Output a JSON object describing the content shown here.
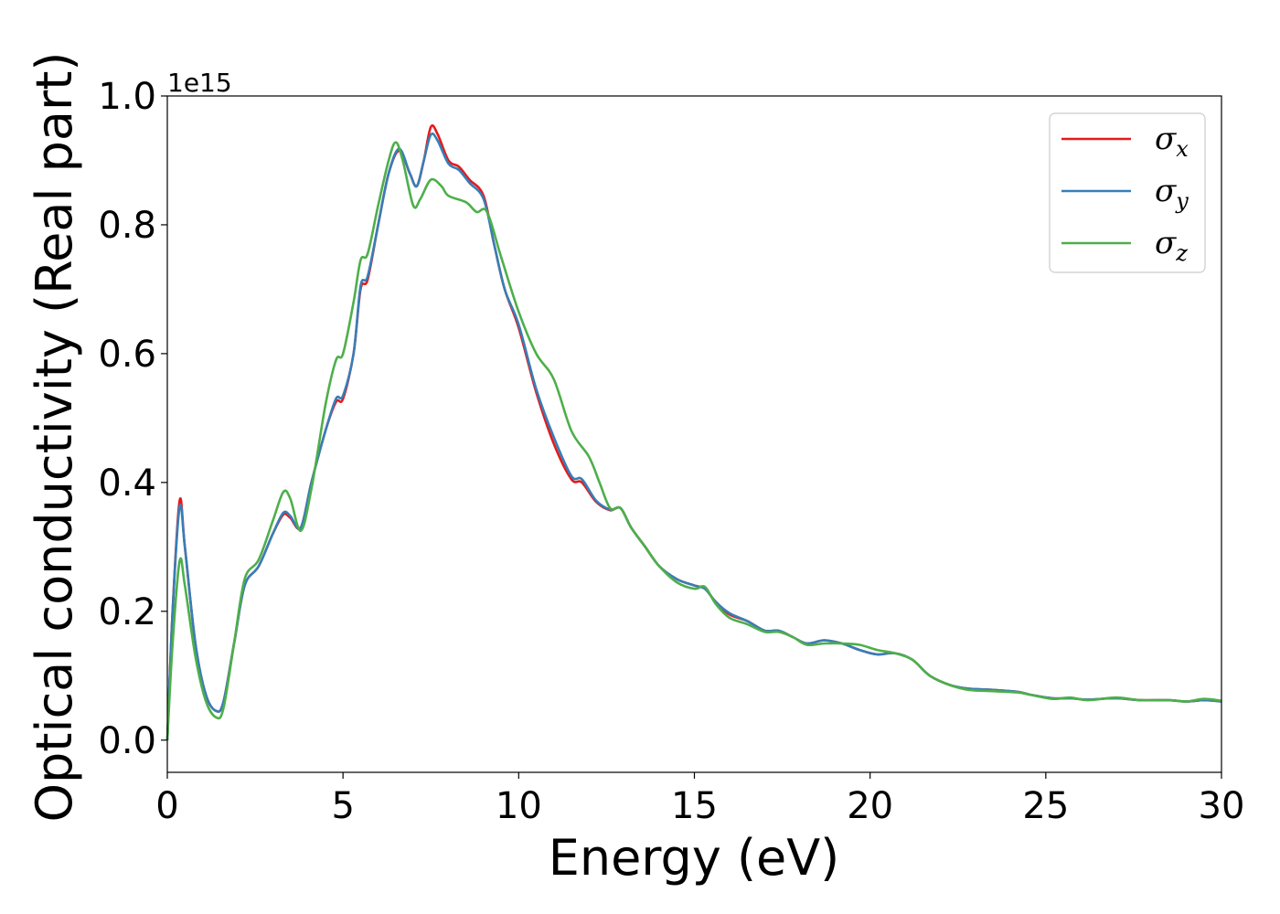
{
  "chart_data": {
    "type": "line",
    "title": "",
    "xlabel": "Energy (eV)",
    "ylabel": "Optical conductivity (Real part)",
    "y_offset_label": "1e15",
    "xlim": [
      0,
      30
    ],
    "ylim": [
      -0.05,
      1.0
    ],
    "x_ticks": [
      0,
      5,
      10,
      15,
      20,
      25,
      30
    ],
    "x_tick_labels": [
      "0",
      "5",
      "10",
      "15",
      "20",
      "25",
      "30"
    ],
    "y_ticks": [
      0.0,
      0.2,
      0.4,
      0.6,
      0.8,
      1.0
    ],
    "y_tick_labels": [
      "0.0",
      "0.2",
      "0.4",
      "0.6",
      "0.8",
      "1.0"
    ],
    "grid": false,
    "legend_position": "top-right",
    "series": [
      {
        "name": "σx",
        "legend_base": "σ",
        "legend_sub": "x",
        "color": "#e41a1c",
        "points": [
          [
            0,
            0.0
          ],
          [
            0.15,
            0.2
          ],
          [
            0.35,
            0.372
          ],
          [
            0.5,
            0.3
          ],
          [
            0.8,
            0.15
          ],
          [
            1.1,
            0.07
          ],
          [
            1.4,
            0.045
          ],
          [
            1.6,
            0.06
          ],
          [
            1.9,
            0.15
          ],
          [
            2.2,
            0.24
          ],
          [
            2.6,
            0.27
          ],
          [
            3.0,
            0.32
          ],
          [
            3.3,
            0.35
          ],
          [
            3.5,
            0.345
          ],
          [
            3.8,
            0.33
          ],
          [
            4.1,
            0.4
          ],
          [
            4.5,
            0.48
          ],
          [
            4.8,
            0.525
          ],
          [
            5.0,
            0.53
          ],
          [
            5.3,
            0.6
          ],
          [
            5.5,
            0.7
          ],
          [
            5.7,
            0.715
          ],
          [
            6.0,
            0.8
          ],
          [
            6.3,
            0.88
          ],
          [
            6.6,
            0.915
          ],
          [
            6.9,
            0.88
          ],
          [
            7.1,
            0.86
          ],
          [
            7.3,
            0.9
          ],
          [
            7.5,
            0.952
          ],
          [
            7.7,
            0.94
          ],
          [
            8.0,
            0.9
          ],
          [
            8.3,
            0.89
          ],
          [
            8.6,
            0.87
          ],
          [
            9.0,
            0.845
          ],
          [
            9.3,
            0.77
          ],
          [
            9.6,
            0.7
          ],
          [
            10.0,
            0.64
          ],
          [
            10.5,
            0.54
          ],
          [
            11.0,
            0.46
          ],
          [
            11.5,
            0.405
          ],
          [
            11.8,
            0.4
          ],
          [
            12.2,
            0.37
          ],
          [
            12.6,
            0.357
          ],
          [
            12.9,
            0.36
          ],
          [
            13.2,
            0.33
          ],
          [
            13.6,
            0.3
          ],
          [
            14.0,
            0.27
          ],
          [
            14.5,
            0.25
          ],
          [
            15.0,
            0.24
          ],
          [
            15.3,
            0.235
          ],
          [
            15.6,
            0.215
          ],
          [
            16.0,
            0.195
          ],
          [
            16.5,
            0.185
          ],
          [
            17.0,
            0.17
          ],
          [
            17.4,
            0.17
          ],
          [
            17.8,
            0.16
          ],
          [
            18.2,
            0.15
          ],
          [
            18.7,
            0.155
          ],
          [
            19.2,
            0.15
          ],
          [
            19.7,
            0.14
          ],
          [
            20.2,
            0.133
          ],
          [
            20.7,
            0.135
          ],
          [
            21.2,
            0.125
          ],
          [
            21.7,
            0.1
          ],
          [
            22.3,
            0.085
          ],
          [
            22.8,
            0.08
          ],
          [
            23.5,
            0.078
          ],
          [
            24.2,
            0.075
          ],
          [
            24.6,
            0.07
          ],
          [
            25.2,
            0.065
          ],
          [
            25.7,
            0.065
          ],
          [
            26.2,
            0.063
          ],
          [
            27.0,
            0.065
          ],
          [
            27.7,
            0.062
          ],
          [
            28.5,
            0.062
          ],
          [
            29.0,
            0.06
          ],
          [
            29.5,
            0.062
          ],
          [
            30.0,
            0.06
          ]
        ]
      },
      {
        "name": "σy",
        "legend_base": "σ",
        "legend_sub": "y",
        "color": "#377eb8",
        "points": [
          [
            0,
            0.0
          ],
          [
            0.15,
            0.2
          ],
          [
            0.35,
            0.362
          ],
          [
            0.5,
            0.3
          ],
          [
            0.8,
            0.15
          ],
          [
            1.1,
            0.07
          ],
          [
            1.4,
            0.045
          ],
          [
            1.6,
            0.06
          ],
          [
            1.9,
            0.15
          ],
          [
            2.2,
            0.24
          ],
          [
            2.6,
            0.27
          ],
          [
            3.0,
            0.32
          ],
          [
            3.3,
            0.353
          ],
          [
            3.5,
            0.348
          ],
          [
            3.8,
            0.33
          ],
          [
            4.1,
            0.4
          ],
          [
            4.5,
            0.48
          ],
          [
            4.8,
            0.53
          ],
          [
            5.0,
            0.535
          ],
          [
            5.3,
            0.6
          ],
          [
            5.5,
            0.705
          ],
          [
            5.7,
            0.72
          ],
          [
            6.0,
            0.8
          ],
          [
            6.3,
            0.88
          ],
          [
            6.6,
            0.918
          ],
          [
            6.9,
            0.88
          ],
          [
            7.1,
            0.86
          ],
          [
            7.3,
            0.9
          ],
          [
            7.5,
            0.94
          ],
          [
            7.7,
            0.93
          ],
          [
            8.0,
            0.895
          ],
          [
            8.3,
            0.885
          ],
          [
            8.6,
            0.865
          ],
          [
            9.0,
            0.84
          ],
          [
            9.3,
            0.77
          ],
          [
            9.6,
            0.7
          ],
          [
            10.0,
            0.645
          ],
          [
            10.5,
            0.545
          ],
          [
            11.0,
            0.47
          ],
          [
            11.5,
            0.41
          ],
          [
            11.8,
            0.405
          ],
          [
            12.2,
            0.372
          ],
          [
            12.6,
            0.358
          ],
          [
            12.9,
            0.36
          ],
          [
            13.2,
            0.33
          ],
          [
            13.6,
            0.3
          ],
          [
            14.0,
            0.27
          ],
          [
            14.5,
            0.25
          ],
          [
            15.0,
            0.24
          ],
          [
            15.3,
            0.235
          ],
          [
            15.6,
            0.215
          ],
          [
            16.0,
            0.197
          ],
          [
            16.5,
            0.185
          ],
          [
            17.0,
            0.17
          ],
          [
            17.4,
            0.17
          ],
          [
            17.8,
            0.16
          ],
          [
            18.2,
            0.15
          ],
          [
            18.7,
            0.155
          ],
          [
            19.2,
            0.15
          ],
          [
            19.7,
            0.14
          ],
          [
            20.2,
            0.133
          ],
          [
            20.7,
            0.135
          ],
          [
            21.2,
            0.125
          ],
          [
            21.7,
            0.1
          ],
          [
            22.3,
            0.085
          ],
          [
            22.8,
            0.08
          ],
          [
            23.5,
            0.078
          ],
          [
            24.2,
            0.075
          ],
          [
            24.6,
            0.07
          ],
          [
            25.2,
            0.065
          ],
          [
            25.7,
            0.065
          ],
          [
            26.2,
            0.063
          ],
          [
            27.0,
            0.065
          ],
          [
            27.7,
            0.062
          ],
          [
            28.5,
            0.062
          ],
          [
            29.0,
            0.06
          ],
          [
            29.5,
            0.062
          ],
          [
            30.0,
            0.06
          ]
        ]
      },
      {
        "name": "σz",
        "legend_base": "σ",
        "legend_sub": "z",
        "color": "#4daf4a",
        "points": [
          [
            0,
            0.0
          ],
          [
            0.15,
            0.15
          ],
          [
            0.35,
            0.278
          ],
          [
            0.5,
            0.24
          ],
          [
            0.8,
            0.13
          ],
          [
            1.1,
            0.06
          ],
          [
            1.4,
            0.035
          ],
          [
            1.6,
            0.05
          ],
          [
            1.9,
            0.15
          ],
          [
            2.2,
            0.25
          ],
          [
            2.6,
            0.28
          ],
          [
            3.0,
            0.34
          ],
          [
            3.3,
            0.385
          ],
          [
            3.5,
            0.375
          ],
          [
            3.8,
            0.325
          ],
          [
            4.1,
            0.39
          ],
          [
            4.5,
            0.52
          ],
          [
            4.8,
            0.59
          ],
          [
            5.0,
            0.6
          ],
          [
            5.3,
            0.68
          ],
          [
            5.5,
            0.745
          ],
          [
            5.7,
            0.755
          ],
          [
            6.0,
            0.83
          ],
          [
            6.3,
            0.9
          ],
          [
            6.5,
            0.928
          ],
          [
            6.7,
            0.9
          ],
          [
            7.0,
            0.83
          ],
          [
            7.2,
            0.84
          ],
          [
            7.5,
            0.87
          ],
          [
            7.8,
            0.86
          ],
          [
            8.0,
            0.845
          ],
          [
            8.5,
            0.835
          ],
          [
            8.8,
            0.82
          ],
          [
            9.1,
            0.82
          ],
          [
            9.5,
            0.75
          ],
          [
            10.0,
            0.665
          ],
          [
            10.5,
            0.6
          ],
          [
            11.0,
            0.56
          ],
          [
            11.5,
            0.48
          ],
          [
            12.0,
            0.44
          ],
          [
            12.3,
            0.4
          ],
          [
            12.6,
            0.36
          ],
          [
            12.9,
            0.36
          ],
          [
            13.2,
            0.33
          ],
          [
            13.6,
            0.3
          ],
          [
            14.0,
            0.27
          ],
          [
            14.5,
            0.245
          ],
          [
            15.0,
            0.235
          ],
          [
            15.3,
            0.238
          ],
          [
            15.6,
            0.212
          ],
          [
            16.0,
            0.19
          ],
          [
            16.5,
            0.18
          ],
          [
            17.0,
            0.168
          ],
          [
            17.4,
            0.168
          ],
          [
            17.8,
            0.16
          ],
          [
            18.2,
            0.148
          ],
          [
            18.7,
            0.15
          ],
          [
            19.2,
            0.15
          ],
          [
            19.7,
            0.148
          ],
          [
            20.2,
            0.14
          ],
          [
            20.7,
            0.135
          ],
          [
            21.2,
            0.125
          ],
          [
            21.7,
            0.1
          ],
          [
            22.3,
            0.085
          ],
          [
            22.8,
            0.078
          ],
          [
            23.5,
            0.076
          ],
          [
            24.2,
            0.074
          ],
          [
            24.6,
            0.07
          ],
          [
            25.2,
            0.064
          ],
          [
            25.7,
            0.066
          ],
          [
            26.2,
            0.062
          ],
          [
            27.0,
            0.066
          ],
          [
            27.7,
            0.062
          ],
          [
            28.5,
            0.062
          ],
          [
            29.0,
            0.06
          ],
          [
            29.5,
            0.064
          ],
          [
            30.0,
            0.061
          ]
        ]
      }
    ]
  }
}
